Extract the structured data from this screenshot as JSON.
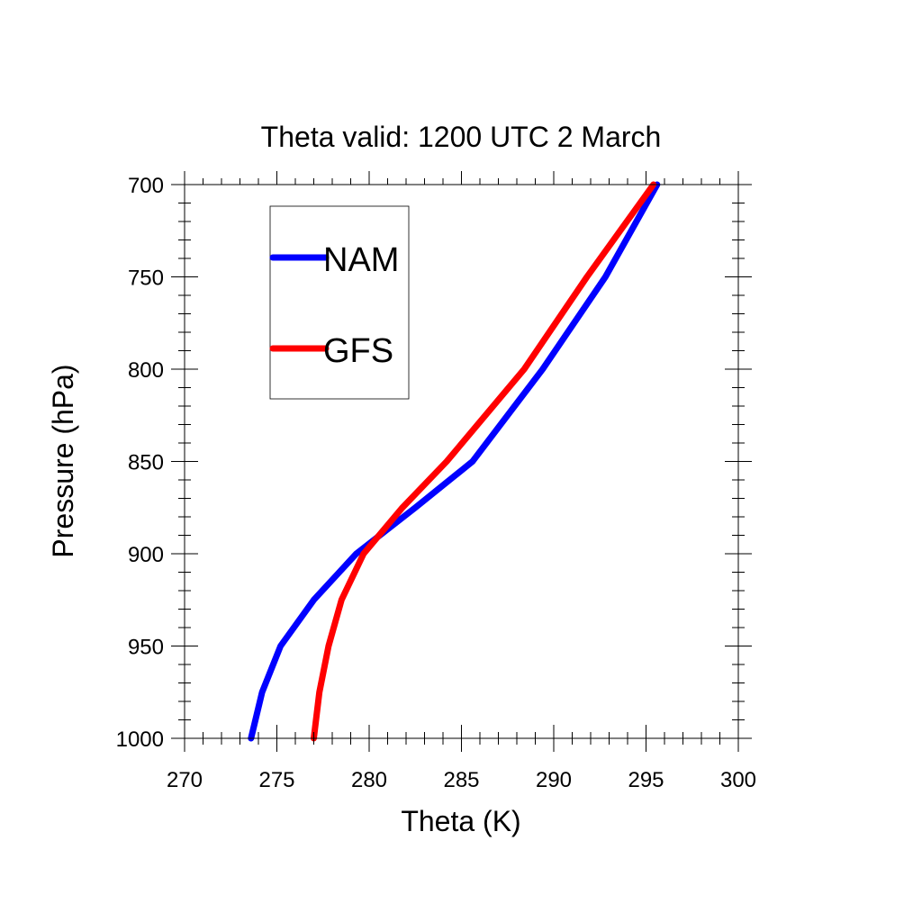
{
  "chart_data": {
    "type": "line",
    "title": "Theta valid: 1200 UTC 2 March",
    "xlabel": "Theta (K)",
    "ylabel": "Pressure (hPa)",
    "xlim": [
      270,
      300
    ],
    "ylim": [
      1000,
      700
    ],
    "y_inverted": true,
    "xticks": [
      "270",
      "275",
      "280",
      "285",
      "290",
      "295",
      "300"
    ],
    "yticks": [
      "700",
      "750",
      "800",
      "850",
      "900",
      "950",
      "1000"
    ],
    "grid": false,
    "legend_position": "top-left",
    "series": [
      {
        "name": "NAM",
        "color": "#0000ff",
        "points": [
          {
            "x": 273.6,
            "y": 1000
          },
          {
            "x": 274.2,
            "y": 975
          },
          {
            "x": 275.2,
            "y": 950
          },
          {
            "x": 277.0,
            "y": 925
          },
          {
            "x": 279.3,
            "y": 900
          },
          {
            "x": 282.5,
            "y": 875
          },
          {
            "x": 285.6,
            "y": 850
          },
          {
            "x": 289.4,
            "y": 800
          },
          {
            "x": 292.8,
            "y": 750
          },
          {
            "x": 295.6,
            "y": 700
          }
        ]
      },
      {
        "name": "GFS",
        "color": "#ff0000",
        "points": [
          {
            "x": 277.0,
            "y": 1000
          },
          {
            "x": 277.3,
            "y": 975
          },
          {
            "x": 277.8,
            "y": 950
          },
          {
            "x": 278.5,
            "y": 925
          },
          {
            "x": 279.7,
            "y": 900
          },
          {
            "x": 281.8,
            "y": 875
          },
          {
            "x": 284.2,
            "y": 850
          },
          {
            "x": 288.4,
            "y": 800
          },
          {
            "x": 291.8,
            "y": 750
          },
          {
            "x": 295.4,
            "y": 700
          }
        ]
      }
    ]
  }
}
